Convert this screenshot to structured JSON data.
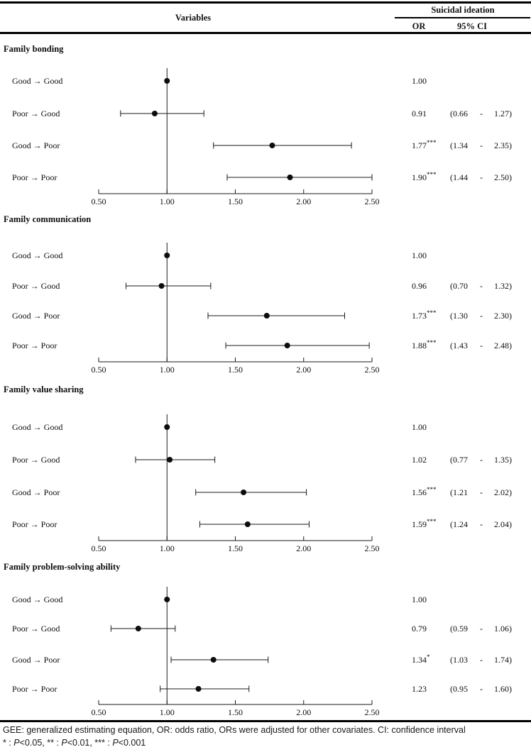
{
  "header": {
    "variables_label": "Variables",
    "group_label": "Suicidal ideation",
    "or_label": "OR",
    "ci_label": "95% CI"
  },
  "footnote": {
    "line1": "GEE: generalized estimating equation, OR: odds ratio, ORs were adjusted for other covariates. CI: confidence interval",
    "line2_parts": [
      {
        "text": "* : "
      },
      {
        "text": "P",
        "italic": true
      },
      {
        "text": "<0.05, ** : "
      },
      {
        "text": "P",
        "italic": true
      },
      {
        "text": "<0.01, *** : "
      },
      {
        "text": "P",
        "italic": true
      },
      {
        "text": "<0.001"
      }
    ]
  },
  "chart_data": [
    {
      "type": "scatter",
      "variant": "forest",
      "title": "Family bonding",
      "categories": [
        "Good → Good",
        "Poor → Good",
        "Good → Poor",
        "Poor → Poor"
      ],
      "or": [
        1.0,
        0.91,
        1.77,
        1.9
      ],
      "ci_low": [
        null,
        0.66,
        1.34,
        1.44
      ],
      "ci_high": [
        null,
        1.27,
        2.35,
        2.5
      ],
      "sig": [
        "",
        "",
        "***",
        "***"
      ],
      "xlim": [
        0.5,
        2.5
      ],
      "tick_values": [
        0.5,
        1.0,
        1.5,
        2.0,
        2.5
      ],
      "tick_labels": [
        "0.50",
        "1.00",
        "1.50",
        "2.00",
        "2.50"
      ],
      "ref_line": 1.0
    },
    {
      "type": "scatter",
      "variant": "forest",
      "title": "Family communication",
      "categories": [
        "Good → Good",
        "Poor → Good",
        "Good → Poor",
        "Poor → Poor"
      ],
      "or": [
        1.0,
        0.96,
        1.73,
        1.88
      ],
      "ci_low": [
        null,
        0.7,
        1.3,
        1.43
      ],
      "ci_high": [
        null,
        1.32,
        2.3,
        2.48
      ],
      "sig": [
        "",
        "",
        "***",
        "***"
      ],
      "xlim": [
        0.5,
        2.5
      ],
      "tick_values": [
        0.5,
        1.0,
        1.5,
        2.0,
        2.5
      ],
      "tick_labels": [
        "0.50",
        "1.00",
        "1.50",
        "2.00",
        "2.50"
      ],
      "ref_line": 1.0
    },
    {
      "type": "scatter",
      "variant": "forest",
      "title": "Family value sharing",
      "categories": [
        "Good → Good",
        "Poor → Good",
        "Good → Poor",
        "Poor → Poor"
      ],
      "or": [
        1.0,
        1.02,
        1.56,
        1.59
      ],
      "ci_low": [
        null,
        0.77,
        1.21,
        1.24
      ],
      "ci_high": [
        null,
        1.35,
        2.02,
        2.04
      ],
      "sig": [
        "",
        "",
        "***",
        "***"
      ],
      "xlim": [
        0.5,
        2.5
      ],
      "tick_values": [
        0.5,
        1.0,
        1.5,
        2.0,
        2.5
      ],
      "tick_labels": [
        "0.50",
        "1.00",
        "1.50",
        "2.00",
        "2.50"
      ],
      "ref_line": 1.0
    },
    {
      "type": "scatter",
      "variant": "forest",
      "title": "Family problem-solving ability",
      "categories": [
        "Good → Good",
        "Poor → Good",
        "Good → Poor",
        "Poor → Poor"
      ],
      "or": [
        1.0,
        0.79,
        1.34,
        1.23
      ],
      "ci_low": [
        null,
        0.59,
        1.03,
        0.95
      ],
      "ci_high": [
        null,
        1.06,
        1.74,
        1.6
      ],
      "sig": [
        "",
        "",
        "*",
        ""
      ],
      "xlim": [
        0.5,
        2.5
      ],
      "tick_values": [
        0.5,
        1.0,
        1.5,
        2.0,
        2.5
      ],
      "tick_labels": [
        "0.50",
        "1.00",
        "1.50",
        "2.00",
        "2.50"
      ],
      "ref_line": 1.0
    }
  ]
}
